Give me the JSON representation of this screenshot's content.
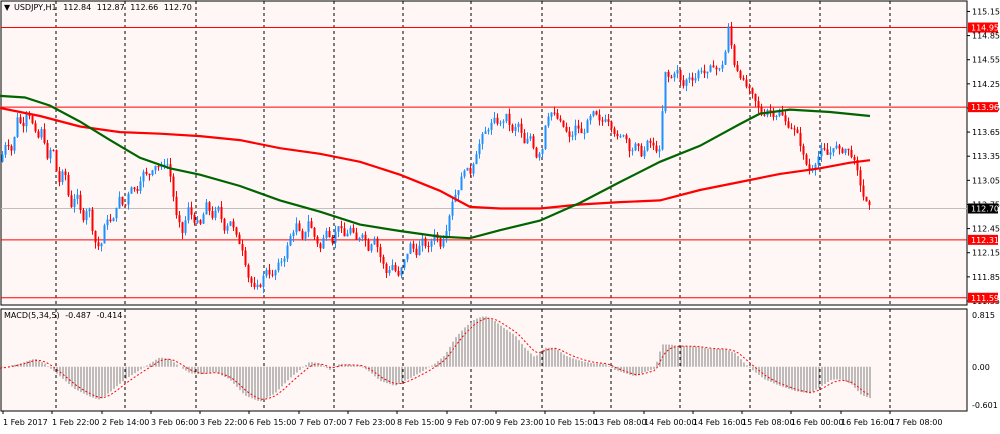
{
  "chart_data": [
    {
      "type": "candlestick",
      "title": "USDJPY,H1",
      "ohlc_label": {
        "open": "112.84",
        "high": "112.87",
        "low": "112.66",
        "close": "112.70"
      },
      "ylim": [
        111.5,
        115.28
      ],
      "y_ticks": [
        "115.15",
        "114.85",
        "114.55",
        "114.25",
        "113.95",
        "113.65",
        "113.35",
        "113.05",
        "112.75",
        "112.45",
        "112.15",
        "111.85",
        "111.55"
      ],
      "x_tick_labels": [
        "1 Feb 2017",
        "1 Feb 22:00",
        "2 Feb 14:00",
        "3 Feb 06:00",
        "3 Feb 22:00",
        "6 Feb 15:00",
        "7 Feb 07:00",
        "7 Feb 23:00",
        "8 Feb 15:00",
        "9 Feb 07:00",
        "9 Feb 23:00",
        "10 Feb 15:00",
        "13 Feb 08:00",
        "14 Feb 00:00",
        "14 Feb 16:00",
        "15 Feb 08:00",
        "16 Feb 00:00",
        "16 Feb 16:00",
        "17 Feb 08:00"
      ],
      "horizontal_levels": [
        {
          "label": "114.95",
          "value": 114.95,
          "color": "#ff0000"
        },
        {
          "label": "113.96",
          "value": 113.96,
          "color": "#ff0000"
        },
        {
          "label": "112.31",
          "value": 112.31,
          "color": "#ff0000"
        },
        {
          "label": "111.59",
          "value": 111.59,
          "color": "#ff0000"
        }
      ],
      "current_price": {
        "label": "112.70",
        "value": 112.7
      },
      "price_anchors": [
        [
          0,
          113.28
        ],
        [
          6,
          113.55
        ],
        [
          12,
          113.4
        ],
        [
          17,
          113.85
        ],
        [
          22,
          113.7
        ],
        [
          27,
          113.95
        ],
        [
          32,
          113.75
        ],
        [
          37,
          113.55
        ],
        [
          42,
          113.7
        ],
        [
          47,
          113.3
        ],
        [
          52,
          113.5
        ],
        [
          58,
          113.0
        ],
        [
          64,
          113.2
        ],
        [
          70,
          112.7
        ],
        [
          76,
          112.9
        ],
        [
          82,
          112.55
        ],
        [
          88,
          112.75
        ],
        [
          94,
          112.3
        ],
        [
          100,
          112.2
        ],
        [
          106,
          112.6
        ],
        [
          112,
          112.5
        ],
        [
          118,
          112.85
        ],
        [
          124,
          112.7
        ],
        [
          130,
          113.0
        ],
        [
          136,
          112.9
        ],
        [
          142,
          113.15
        ],
        [
          148,
          113.1
        ],
        [
          154,
          113.25
        ],
        [
          160,
          113.2
        ],
        [
          166,
          113.3
        ],
        [
          170,
          113.1
        ],
        [
          176,
          112.6
        ],
        [
          182,
          112.4
        ],
        [
          188,
          112.7
        ],
        [
          194,
          112.55
        ],
        [
          200,
          112.5
        ],
        [
          206,
          112.75
        ],
        [
          212,
          112.6
        ],
        [
          218,
          112.7
        ],
        [
          224,
          112.45
        ],
        [
          230,
          112.55
        ],
        [
          236,
          112.35
        ],
        [
          242,
          112.2
        ],
        [
          248,
          111.85
        ],
        [
          254,
          111.7
        ],
        [
          260,
          111.75
        ],
        [
          266,
          111.95
        ],
        [
          272,
          111.85
        ],
        [
          278,
          112.0
        ],
        [
          284,
          112.1
        ],
        [
          290,
          112.35
        ],
        [
          296,
          112.5
        ],
        [
          302,
          112.3
        ],
        [
          308,
          112.55
        ],
        [
          314,
          112.35
        ],
        [
          320,
          112.2
        ],
        [
          326,
          112.45
        ],
        [
          332,
          112.3
        ],
        [
          338,
          112.5
        ],
        [
          344,
          112.35
        ],
        [
          350,
          112.45
        ],
        [
          356,
          112.3
        ],
        [
          362,
          112.4
        ],
        [
          368,
          112.2
        ],
        [
          374,
          112.35
        ],
        [
          380,
          112.1
        ],
        [
          386,
          111.9
        ],
        [
          392,
          112.0
        ],
        [
          398,
          111.85
        ],
        [
          404,
          112.05
        ],
        [
          410,
          112.25
        ],
        [
          416,
          112.15
        ],
        [
          422,
          112.3
        ],
        [
          428,
          112.2
        ],
        [
          434,
          112.4
        ],
        [
          440,
          112.25
        ],
        [
          446,
          112.45
        ],
        [
          452,
          112.8
        ],
        [
          458,
          112.95
        ],
        [
          464,
          113.2
        ],
        [
          470,
          113.15
        ],
        [
          476,
          113.4
        ],
        [
          482,
          113.6
        ],
        [
          488,
          113.7
        ],
        [
          494,
          113.8
        ],
        [
          500,
          113.75
        ],
        [
          506,
          113.85
        ],
        [
          512,
          113.65
        ],
        [
          518,
          113.75
        ],
        [
          524,
          113.5
        ],
        [
          530,
          113.6
        ],
        [
          536,
          113.35
        ],
        [
          542,
          113.45
        ],
        [
          546,
          113.85
        ],
        [
          552,
          113.9
        ],
        [
          558,
          113.8
        ],
        [
          564,
          113.7
        ],
        [
          570,
          113.55
        ],
        [
          576,
          113.75
        ],
        [
          582,
          113.6
        ],
        [
          588,
          113.8
        ],
        [
          594,
          113.9
        ],
        [
          600,
          113.75
        ],
        [
          606,
          113.85
        ],
        [
          612,
          113.7
        ],
        [
          618,
          113.55
        ],
        [
          624,
          113.65
        ],
        [
          630,
          113.4
        ],
        [
          636,
          113.5
        ],
        [
          642,
          113.35
        ],
        [
          648,
          113.55
        ],
        [
          654,
          113.45
        ],
        [
          660,
          113.4
        ],
        [
          664,
          114.4
        ],
        [
          670,
          114.3
        ],
        [
          676,
          114.45
        ],
        [
          682,
          114.2
        ],
        [
          688,
          114.35
        ],
        [
          694,
          114.3
        ],
        [
          700,
          114.45
        ],
        [
          706,
          114.35
        ],
        [
          712,
          114.5
        ],
        [
          718,
          114.4
        ],
        [
          724,
          114.55
        ],
        [
          728,
          114.95
        ],
        [
          734,
          114.5
        ],
        [
          738,
          114.4
        ],
        [
          744,
          114.25
        ],
        [
          750,
          114.15
        ],
        [
          756,
          114.0
        ],
        [
          762,
          113.85
        ],
        [
          768,
          113.95
        ],
        [
          774,
          113.85
        ],
        [
          780,
          113.9
        ],
        [
          786,
          113.75
        ],
        [
          792,
          113.7
        ],
        [
          798,
          113.6
        ],
        [
          804,
          113.3
        ],
        [
          810,
          113.15
        ],
        [
          816,
          113.3
        ],
        [
          822,
          113.45
        ],
        [
          828,
          113.35
        ],
        [
          834,
          113.5
        ],
        [
          840,
          113.4
        ],
        [
          846,
          113.45
        ],
        [
          852,
          113.35
        ],
        [
          856,
          113.2
        ],
        [
          860,
          113.0
        ],
        [
          864,
          112.8
        ],
        [
          870,
          112.7
        ]
      ],
      "ma_red": [
        [
          0,
          113.95
        ],
        [
          40,
          113.85
        ],
        [
          80,
          113.72
        ],
        [
          120,
          113.65
        ],
        [
          160,
          113.63
        ],
        [
          200,
          113.6
        ],
        [
          240,
          113.55
        ],
        [
          280,
          113.45
        ],
        [
          320,
          113.38
        ],
        [
          360,
          113.28
        ],
        [
          400,
          113.12
        ],
        [
          440,
          112.92
        ],
        [
          470,
          112.72
        ],
        [
          500,
          112.7
        ],
        [
          540,
          112.7
        ],
        [
          580,
          112.75
        ],
        [
          620,
          112.78
        ],
        [
          660,
          112.8
        ],
        [
          700,
          112.93
        ],
        [
          740,
          113.03
        ],
        [
          780,
          113.13
        ],
        [
          820,
          113.2
        ],
        [
          850,
          113.27
        ],
        [
          870,
          113.3
        ]
      ],
      "ma_green": [
        [
          0,
          114.1
        ],
        [
          25,
          114.08
        ],
        [
          50,
          113.98
        ],
        [
          80,
          113.78
        ],
        [
          110,
          113.55
        ],
        [
          140,
          113.33
        ],
        [
          170,
          113.2
        ],
        [
          200,
          113.12
        ],
        [
          240,
          112.98
        ],
        [
          280,
          112.8
        ],
        [
          320,
          112.66
        ],
        [
          360,
          112.5
        ],
        [
          400,
          112.42
        ],
        [
          440,
          112.35
        ],
        [
          470,
          112.33
        ],
        [
          500,
          112.43
        ],
        [
          540,
          112.55
        ],
        [
          580,
          112.77
        ],
        [
          620,
          113.03
        ],
        [
          660,
          113.28
        ],
        [
          700,
          113.48
        ],
        [
          740,
          113.75
        ],
        [
          760,
          113.88
        ],
        [
          790,
          113.93
        ],
        [
          830,
          113.9
        ],
        [
          870,
          113.85
        ]
      ],
      "macd": {
        "label": "MACD(5,34,5)",
        "values_label": [
          "-0.487",
          "-0.414"
        ],
        "ylim": [
          -0.601,
          0.815
        ],
        "y_ticks": [
          "0.815",
          "0.00",
          "-0.601"
        ],
        "anchors": [
          [
            0,
            -0.02
          ],
          [
            20,
            0.05
          ],
          [
            35,
            0.13
          ],
          [
            45,
            0.05
          ],
          [
            60,
            -0.15
          ],
          [
            75,
            -0.35
          ],
          [
            90,
            -0.47
          ],
          [
            100,
            -0.52
          ],
          [
            110,
            -0.4
          ],
          [
            125,
            -0.2
          ],
          [
            140,
            -0.05
          ],
          [
            160,
            0.15
          ],
          [
            170,
            0.12
          ],
          [
            180,
            0.0
          ],
          [
            190,
            -0.1
          ],
          [
            200,
            -0.12
          ],
          [
            215,
            -0.08
          ],
          [
            230,
            -0.2
          ],
          [
            245,
            -0.45
          ],
          [
            260,
            -0.55
          ],
          [
            275,
            -0.42
          ],
          [
            290,
            -0.18
          ],
          [
            300,
            -0.05
          ],
          [
            310,
            0.08
          ],
          [
            320,
            0.05
          ],
          [
            330,
            -0.05
          ],
          [
            340,
            0.05
          ],
          [
            350,
            0.03
          ],
          [
            360,
            0.02
          ],
          [
            370,
            -0.08
          ],
          [
            380,
            -0.22
          ],
          [
            395,
            -0.3
          ],
          [
            410,
            -0.18
          ],
          [
            425,
            -0.05
          ],
          [
            435,
            0.05
          ],
          [
            445,
            0.18
          ],
          [
            455,
            0.45
          ],
          [
            465,
            0.62
          ],
          [
            475,
            0.75
          ],
          [
            485,
            0.8
          ],
          [
            495,
            0.72
          ],
          [
            505,
            0.6
          ],
          [
            515,
            0.5
          ],
          [
            525,
            0.3
          ],
          [
            535,
            0.15
          ],
          [
            545,
            0.3
          ],
          [
            555,
            0.3
          ],
          [
            565,
            0.18
          ],
          [
            575,
            0.12
          ],
          [
            585,
            0.08
          ],
          [
            595,
            0.05
          ],
          [
            605,
            0.05
          ],
          [
            615,
            -0.05
          ],
          [
            625,
            -0.1
          ],
          [
            635,
            -0.15
          ],
          [
            645,
            -0.08
          ],
          [
            655,
            -0.03
          ],
          [
            662,
            0.35
          ],
          [
            670,
            0.35
          ],
          [
            680,
            0.33
          ],
          [
            695,
            0.32
          ],
          [
            710,
            0.28
          ],
          [
            725,
            0.28
          ],
          [
            735,
            0.22
          ],
          [
            745,
            0.05
          ],
          [
            755,
            -0.08
          ],
          [
            765,
            -0.2
          ],
          [
            780,
            -0.3
          ],
          [
            795,
            -0.38
          ],
          [
            810,
            -0.42
          ],
          [
            822,
            -0.3
          ],
          [
            832,
            -0.2
          ],
          [
            842,
            -0.2
          ],
          [
            852,
            -0.28
          ],
          [
            862,
            -0.45
          ],
          [
            870,
            -0.49
          ]
        ]
      }
    }
  ],
  "colors": {
    "bull": "#1e90ff",
    "bear": "#ff0000",
    "ma_red": "#ff0000",
    "ma_green": "#006400",
    "level": "#ff0000",
    "grid": "#000000",
    "macd_bar": "#808080",
    "macd_signal": "#ff0000"
  }
}
